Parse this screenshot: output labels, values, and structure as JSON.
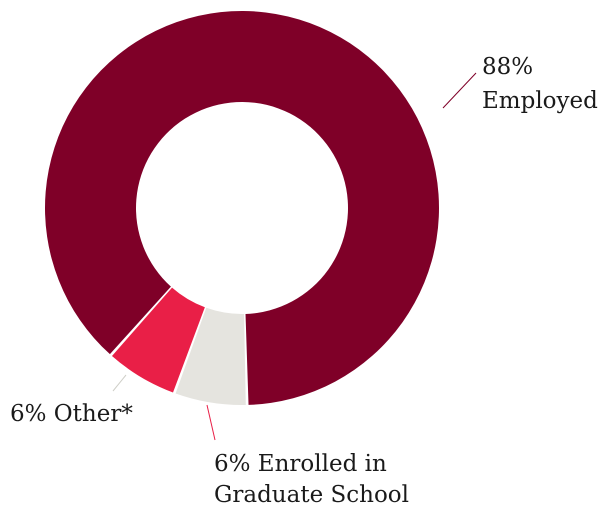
{
  "chart_data": {
    "type": "pie",
    "variant": "donut",
    "slices": [
      {
        "label": "Employed",
        "value": 88,
        "display": "88%",
        "color": "#7f0028"
      },
      {
        "label": "Enrolled in Graduate School",
        "value": 6,
        "display": "6%",
        "color": "#e91f47"
      },
      {
        "label": "Other*",
        "value": 6,
        "display": "6%",
        "color": "#e5e4df"
      }
    ],
    "labels": {
      "employed_line1": "88%",
      "employed_line2": "Employed",
      "enrolled_line1": "6% Enrolled in",
      "enrolled_line2": "Graduate School",
      "other": "6% Other*"
    }
  }
}
